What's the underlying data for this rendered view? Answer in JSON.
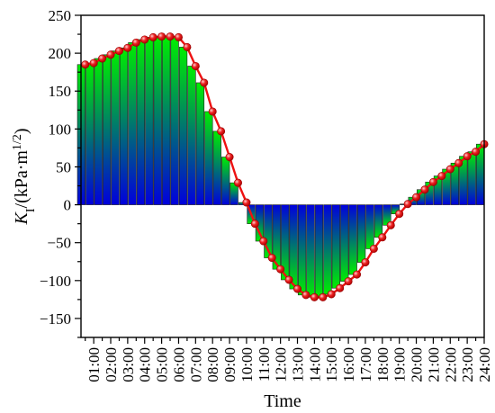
{
  "chart_data": {
    "type": "bar",
    "xlabel": "Time",
    "ylabel_main": "K",
    "ylabel_sub": "I",
    "ylabel_rest": "/(kPa·m",
    "ylabel_sup": "1/2",
    "ylabel_close": ")",
    "ylim": [
      -175,
      250
    ],
    "y_ticks": [
      -150,
      -100,
      -50,
      0,
      50,
      100,
      150,
      200,
      250
    ],
    "y_tick_labels": [
      "−150",
      "−100",
      "−50",
      "0",
      "50",
      "100",
      "150",
      "200",
      "250"
    ],
    "x_tick_labels": [
      "01:00",
      "02:00",
      "03:00",
      "04:00",
      "05:00",
      "06:00",
      "07:00",
      "08:00",
      "09:00",
      "10:00",
      "11:00",
      "12:00",
      "13:00",
      "14:00",
      "15:00",
      "16:00",
      "17:00",
      "18:00",
      "19:00",
      "20:00",
      "21:00",
      "22:00",
      "23:00",
      "24:00"
    ],
    "x_range_hours": [
      0.25,
      24
    ],
    "x_hours": [
      0.5,
      1,
      1.5,
      2,
      2.5,
      3,
      3.5,
      4,
      4.5,
      5,
      5.5,
      6,
      6.5,
      7,
      7.5,
      8,
      8.5,
      9,
      9.5,
      10,
      10.5,
      11,
      11.5,
      12,
      12.5,
      13,
      13.5,
      14,
      14.5,
      15,
      15.5,
      16,
      16.5,
      17,
      17.5,
      18,
      18.5,
      19,
      19.5,
      20,
      20.5,
      21,
      21.5,
      22,
      22.5,
      23,
      23.5,
      24
    ],
    "values": [
      185,
      187,
      193,
      198,
      203,
      207,
      214,
      218,
      221,
      222,
      222,
      221,
      208,
      183,
      161,
      123,
      97,
      63,
      29,
      3,
      -25,
      -48,
      -70,
      -85,
      -99,
      -111,
      -119,
      -122,
      -122,
      -118,
      -110,
      -101,
      -92,
      -76,
      -58,
      -43,
      -27,
      -12,
      1,
      10,
      20,
      30,
      38,
      47,
      55,
      64,
      70,
      80
    ],
    "bar_gradient_colors": [
      "#00ee00",
      "#0000dd"
    ],
    "line_color": "#ee1111",
    "marker_color": "#ee1111",
    "grid": false
  }
}
